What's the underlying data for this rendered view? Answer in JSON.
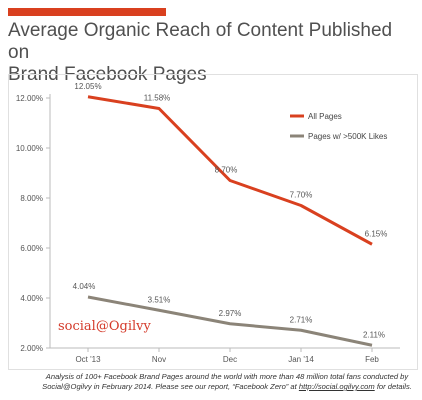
{
  "title": {
    "line1": "Average Organic Reach of Content Published on",
    "line2": "Brand Facebook Pages"
  },
  "colors": {
    "accent": "#d9401f",
    "all_pages": "#d9401f",
    "large_pages": "#8b8478"
  },
  "logo_text": "social@Ogilvy",
  "footnote": {
    "text": "Analysis of 100+ Facebook Brand Pages around the world with more than 48 million total fans conducted by Social@Ogilvy in February 2014. Please see our report, “Facebook Zero” at ",
    "link": "http://social.ogilvy.com",
    "tail": " for details."
  },
  "chart_data": {
    "type": "line",
    "categories": [
      "Oct '13",
      "Nov",
      "Dec",
      "Jan '14",
      "Feb"
    ],
    "series": [
      {
        "name": "All Pages",
        "values": [
          12.05,
          11.58,
          8.7,
          7.7,
          6.15
        ],
        "labels": [
          "12.05%",
          "11.58%",
          "8.70%",
          "7.70%",
          "6.15%"
        ]
      },
      {
        "name": "Pages w/ >500K Likes",
        "values": [
          4.04,
          3.51,
          2.97,
          2.71,
          2.11
        ],
        "labels": [
          "4.04%",
          "3.51%",
          "2.97%",
          "2.71%",
          "2.11%"
        ]
      }
    ],
    "yticks": [
      "2.00%",
      "4.00%",
      "6.00%",
      "8.00%",
      "10.00%",
      "12.00%"
    ],
    "ytick_values": [
      2,
      4,
      6,
      8,
      10,
      12
    ],
    "ylim": [
      2,
      12
    ],
    "grid": false,
    "legend_position": "top-right"
  }
}
